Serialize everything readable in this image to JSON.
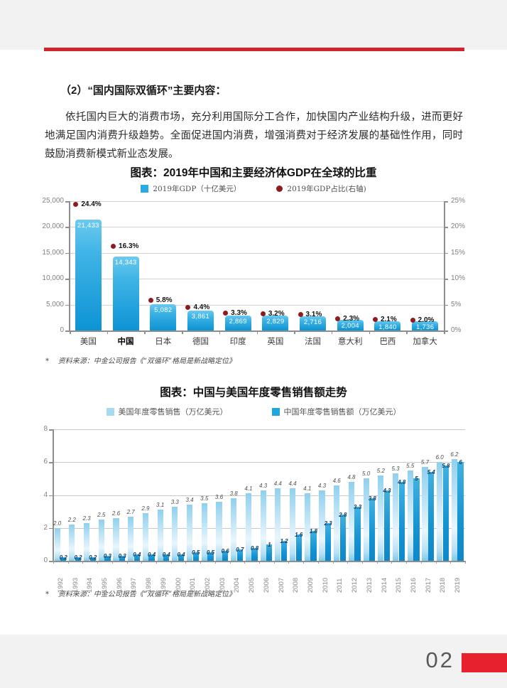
{
  "page": {
    "page_number": "02"
  },
  "colors": {
    "accent_red": "#d4222c",
    "footer_red": "#e8212e",
    "page_bg": "#f2f2f3",
    "c1_bar_top": "#6cc9ef",
    "c1_bar_bottom": "#0d93d4",
    "c1_dot": "#8e1b1e",
    "us_bar_top": "#8fd0ee",
    "us_bar_mid": "#e9f6fd",
    "us_bar_bottom": "#7ccaec",
    "cn_bar_top": "#41b1e2",
    "cn_bar_bottom": "#0d87c9"
  },
  "heading": "（2）“国内国际双循环”主要内容：",
  "paragraph": "依托国内巨大的消费市场，充分利用国际分工合作，加快国内产业结构升级，进而更好地满足国内消费升级趋势。全面促进国内消费，增强消费对于经济发展的基础性作用，同时鼓励消费新模式新业态发展。",
  "source_note": "*    资料来源：中金公司报告《“双循环”格局是新战略定位》",
  "chart_data": [
    {
      "type": "bar",
      "title": "图表：2019年中国和主要经济体GDP在全球的比重",
      "legend": [
        {
          "label": "2019年GDP（十亿美元）",
          "color": "#29abe2",
          "marker": "square"
        },
        {
          "label": "2019年GDP占比(右轴)",
          "color": "#8e1b1e",
          "marker": "circle"
        }
      ],
      "categories": [
        "美国",
        "中国",
        "日本",
        "德国",
        "印度",
        "英国",
        "法国",
        "意大利",
        "巴西",
        "加拿大"
      ],
      "emphasized_category_index": 1,
      "series": [
        {
          "name": "2019年GDP（十亿美元）",
          "axis": "left",
          "values": [
            21433,
            14343,
            5082,
            3861,
            2869,
            2829,
            2716,
            2004,
            1840,
            1736
          ],
          "labels": [
            "21,433",
            "14,343",
            "5,082",
            "3,861",
            "2,869",
            "2,829",
            "2,716",
            "2,004",
            "1,840",
            "1,736"
          ]
        },
        {
          "name": "2019年GDP占比(右轴)",
          "axis": "right",
          "values": [
            24.4,
            16.3,
            5.8,
            4.4,
            3.3,
            3.2,
            3.1,
            2.3,
            2.1,
            2.0
          ],
          "labels": [
            "24.4%",
            "16.3%",
            "5.8%",
            "4.4%",
            "3.3%",
            "3.2%",
            "3.1%",
            "2.3%",
            "2.1%",
            "2.0%"
          ]
        }
      ],
      "left_axis": {
        "ticks": [
          "0",
          "5,000",
          "10,000",
          "15,000",
          "20,000",
          "25,000"
        ],
        "min": 0,
        "max": 25000
      },
      "right_axis": {
        "ticks": [
          "0%",
          "5%",
          "10%",
          "15%",
          "20%",
          "25%"
        ],
        "min": 0,
        "max": 25
      },
      "grid": true,
      "legend_position": "top"
    },
    {
      "type": "bar",
      "title": "图表：中国与美国年度零售销售额走势",
      "legend": [
        {
          "label": "美国年度零售销售（万亿美元）",
          "color": "#a7d9f1",
          "marker": "square"
        },
        {
          "label": "中国年度零售销售额（万亿美元）",
          "color": "#1ea7dd",
          "marker": "square"
        }
      ],
      "categories": [
        "1992",
        "1993",
        "1994",
        "1995",
        "1996",
        "1997",
        "1998",
        "1999",
        "2000",
        "2001",
        "2002",
        "2003",
        "2004",
        "2005",
        "2006",
        "2007",
        "2008",
        "2009",
        "2010",
        "2011",
        "2012",
        "2013",
        "2014",
        "2015",
        "2016",
        "2017",
        "2018",
        "2019"
      ],
      "series": [
        {
          "name": "美国年度零售销售（万亿美元）",
          "values": [
            2.0,
            2.2,
            2.3,
            2.5,
            2.6,
            2.7,
            2.9,
            3.1,
            3.3,
            3.4,
            3.5,
            3.6,
            3.8,
            4.1,
            4.3,
            4.4,
            4.4,
            4.1,
            4.3,
            4.6,
            4.8,
            5.0,
            5.2,
            5.3,
            5.5,
            5.7,
            6.0,
            6.2
          ],
          "labels": [
            "2.0",
            "2.2",
            "2.3",
            "2.5",
            "2.6",
            "2.7",
            "2.9",
            "3.1",
            "3.3",
            "3.4",
            "3.5",
            "3.6",
            "3.8",
            "4.1",
            "4.3",
            "4.4",
            "4.4",
            "4.1",
            "4.3",
            "4.6",
            "4.8",
            "5.0",
            "5.2",
            "5.3",
            "5.5",
            "5.7",
            "6.0",
            "6.2"
          ]
        },
        {
          "name": "中国年度零售销售额（万亿美元）",
          "values": [
            0.2,
            0.2,
            0.2,
            0.3,
            0.3,
            0.4,
            0.4,
            0.4,
            0.4,
            0.5,
            0.5,
            0.6,
            0.7,
            0.8,
            1,
            1.2,
            1.6,
            1.8,
            2.3,
            2.8,
            3.3,
            3.8,
            4.3,
            4.8,
            5,
            5.4,
            5.8,
            6
          ],
          "labels": [
            "0.2",
            "0.2",
            "0.2",
            "0.3",
            "0.3",
            "0.4",
            "0.4",
            "0.4",
            "0.4",
            "0.5",
            "0.5",
            "0.6",
            "0.7",
            "0.8",
            "1",
            "1.2",
            "1.6",
            "1.8",
            "2.3",
            "2.8",
            "3.3",
            "3.8",
            "4.3",
            "4.8",
            "5",
            "5.4",
            "5.8",
            "6"
          ]
        }
      ],
      "left_axis": {
        "ticks": [
          "0",
          "2",
          "4",
          "6",
          "8"
        ],
        "min": 0,
        "max": 8
      },
      "grid": true,
      "legend_position": "top"
    }
  ]
}
